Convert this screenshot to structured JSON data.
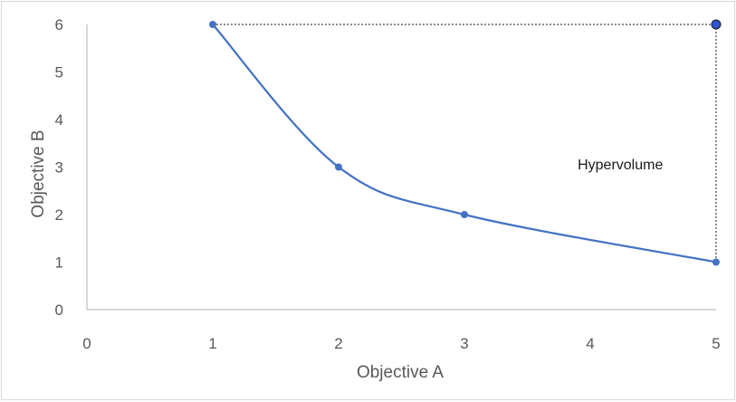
{
  "chart_data": {
    "type": "line",
    "title": "",
    "xlabel": "Objective A",
    "ylabel": "Objective B",
    "xlim": [
      0,
      5
    ],
    "ylim": [
      0,
      6
    ],
    "xticks": [
      0,
      1,
      2,
      3,
      4,
      5
    ],
    "yticks": [
      0,
      1,
      2,
      3,
      4,
      5,
      6
    ],
    "grid": false,
    "series": [
      {
        "x": [
          1,
          2,
          3,
          5
        ],
        "y": [
          6,
          3,
          2,
          1
        ],
        "smooth": true,
        "color": "#4472c4"
      }
    ],
    "reference_point": {
      "x": 5,
      "y": 6,
      "color": "#2f55d4"
    },
    "hypervolume_box": {
      "x_range": [
        1,
        5
      ],
      "y_range": [
        1,
        6
      ],
      "style": "dotted"
    },
    "annotations": [
      {
        "text": "Hypervolume",
        "x": 3.9,
        "y": 2.95
      }
    ],
    "colors": {
      "axis": "#bfbfbf",
      "text": "#595959",
      "line": "#4472c4",
      "dotted": "#1a1a1a"
    }
  }
}
